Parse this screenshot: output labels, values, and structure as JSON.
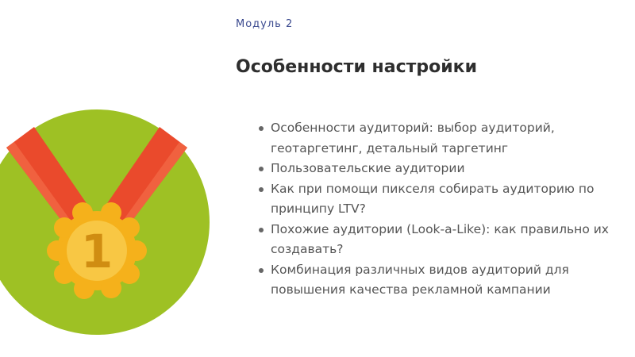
{
  "module": {
    "label": "Модуль 2"
  },
  "section": {
    "title": "Особенности настройки"
  },
  "topics": [
    "Особенности аудиторий: выбор аудиторий, геотаргетинг, детальный таргетинг",
    "Пользовательские аудитории",
    "Как при помощи пикселя собирать аудиторию по принципу LTV?",
    " Похожие аудитории (Look-a-Like): как правильно их создавать?",
    "Комбинация различных видов аудиторий для повышения качества рекламной кампании"
  ],
  "medal": {
    "number": "1",
    "icon": "medal-icon",
    "colors": {
      "background_circle": "#9ec124",
      "ribbon": "#ea4a2c",
      "ribbon_highlight": "#f0613f",
      "medal_outer": "#f5b11b",
      "medal_inner": "#f8c744",
      "numeral": "#d08d12"
    }
  }
}
